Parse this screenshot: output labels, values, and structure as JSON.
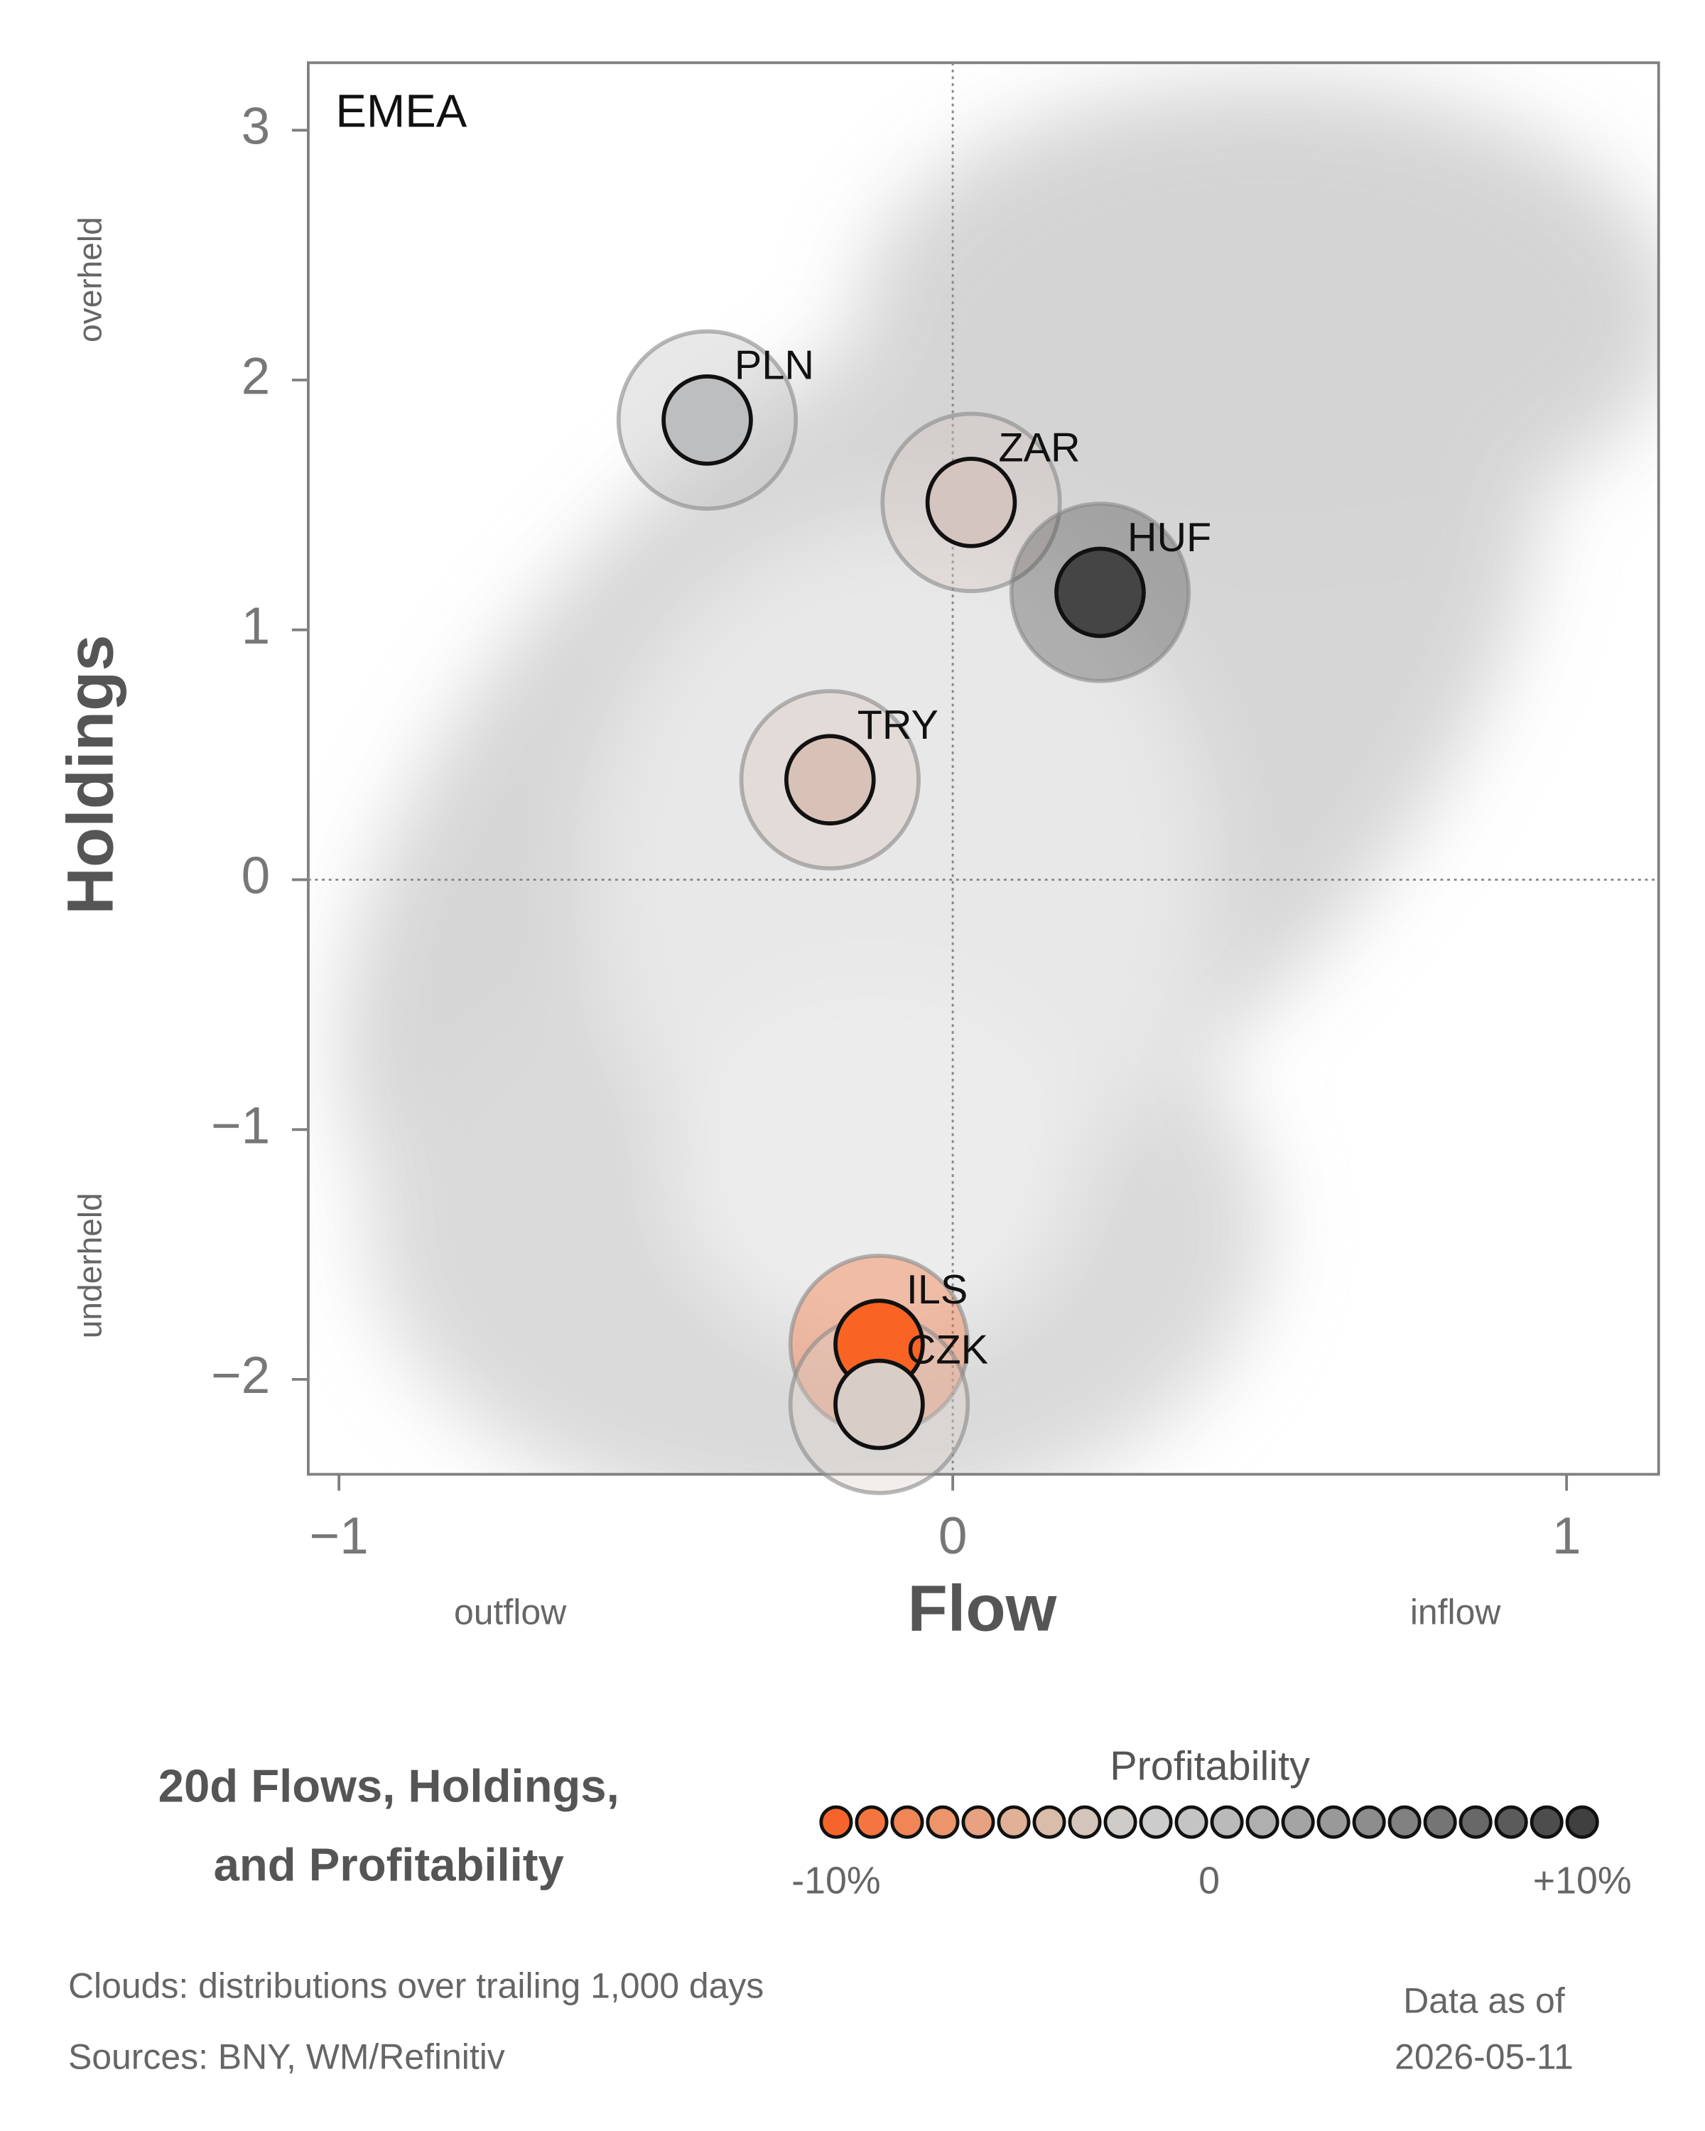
{
  "chart_data": {
    "type": "scatter",
    "panel_label": "EMEA",
    "xlabel": "Flow",
    "ylabel": "Holdings",
    "x_low_label": "outflow",
    "x_high_label": "inflow",
    "y_high_label": "overheld",
    "y_low_label": "underheld",
    "title": [
      "20d Flows, Holdings,",
      "and Profitability"
    ],
    "xlim": [
      -1.05,
      1.15
    ],
    "ylim": [
      -2.38,
      3.27
    ],
    "xticks": [
      {
        "value": -1,
        "label": "−1"
      },
      0,
      1
    ],
    "yticks": [
      {
        "value": -2,
        "label": "−2"
      },
      {
        "value": -1,
        "label": "−1"
      },
      0,
      1,
      2,
      3
    ],
    "points": [
      {
        "name": "PLN",
        "x": -0.4,
        "y": 1.84,
        "color": "#bdbec0"
      },
      {
        "name": "ZAR",
        "x": 0.03,
        "y": 1.51,
        "color": "#d4c5c0"
      },
      {
        "name": "HUF",
        "x": 0.24,
        "y": 1.15,
        "color": "#454545"
      },
      {
        "name": "TRY",
        "x": -0.2,
        "y": 0.4,
        "color": "#d8c2b8"
      },
      {
        "name": "ILS",
        "x": -0.12,
        "y": -1.86,
        "color": "#f96424"
      },
      {
        "name": "CZK",
        "x": -0.12,
        "y": -2.1,
        "color": "#d9cdc8"
      }
    ],
    "colorbar": {
      "title": "Profitability",
      "range": [
        -10,
        10
      ],
      "ticks": [
        {
          "value": -10,
          "label": "-10%"
        },
        0,
        {
          "value": 10,
          "label": "+10%"
        }
      ],
      "colors": [
        "#f5652b",
        "#f37640",
        "#f08656",
        "#ec956b",
        "#e7a381",
        "#e0b097",
        "#d9bcaa",
        "#d3c5bb",
        "#cfcbc8",
        "#cccccc",
        "#c4c4c4",
        "#bababa",
        "#afafaf",
        "#a4a4a4",
        "#999999",
        "#8d8d8d",
        "#818181",
        "#757575",
        "#686868",
        "#5b5b5b",
        "#4d4d4d",
        "#404040"
      ]
    },
    "notes": [
      "Clouds:  distributions over trailing 1,000 days",
      "Sources:  BNY, WM/Refinitiv"
    ],
    "as_of": [
      "Data as of",
      "2026-05-11"
    ]
  }
}
